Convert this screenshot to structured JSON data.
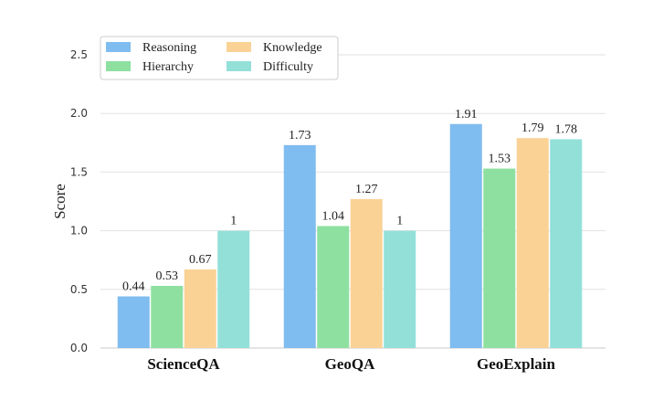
{
  "chart_data": {
    "type": "bar",
    "categories": [
      "ScienceQA",
      "GeoQA",
      "GeoExplain"
    ],
    "series": [
      {
        "name": "Reasoning",
        "values": [
          0.44,
          1.73,
          1.91
        ],
        "labels": [
          "0.44",
          "1.73",
          "1.91"
        ],
        "color": "#7fbcef"
      },
      {
        "name": "Hierarchy",
        "values": [
          0.53,
          1.04,
          1.53
        ],
        "labels": [
          "0.53",
          "1.04",
          "1.53"
        ],
        "color": "#8ee0a1"
      },
      {
        "name": "Knowledge",
        "values": [
          0.67,
          1.27,
          1.79
        ],
        "labels": [
          "0.67",
          "1.27",
          "1.79"
        ],
        "color": "#fad296"
      },
      {
        "name": "Difficulty",
        "values": [
          1.0,
          1.0,
          1.78
        ],
        "labels": [
          "1",
          "1",
          "1.78"
        ],
        "color": "#93e0d9"
      }
    ],
    "xlabel": "",
    "ylabel": "Score",
    "ylim": [
      0,
      2.5
    ],
    "yticks": [
      "0.0",
      "0.5",
      "1.0",
      "1.5",
      "2.0",
      "2.5"
    ],
    "grid": true,
    "legend_position": "top-left",
    "legend_columns": 2
  }
}
